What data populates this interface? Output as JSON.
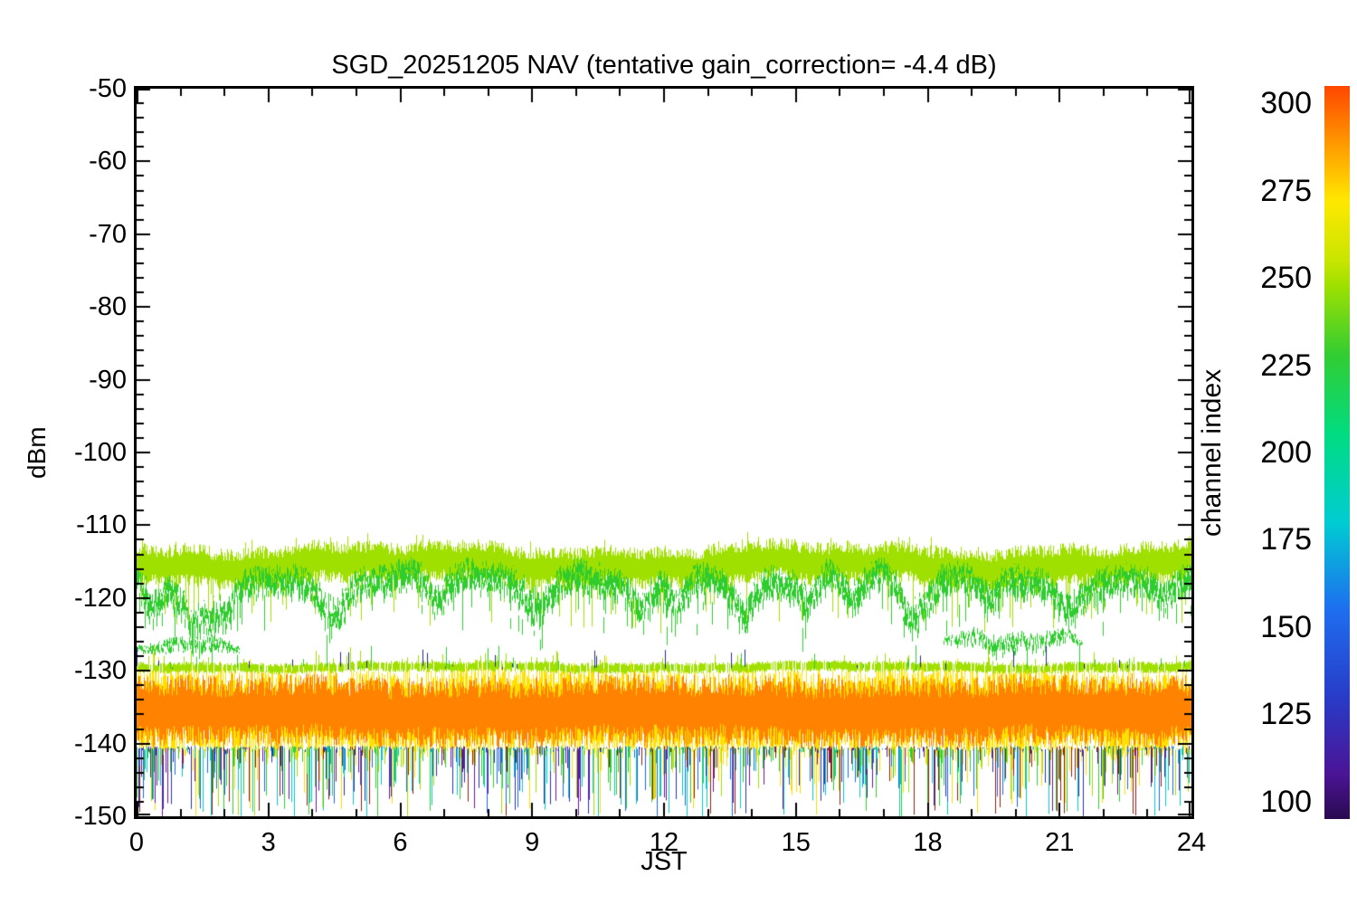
{
  "chart_data": {
    "type": "line",
    "title": "SGD_20251205 NAV (tentative gain_correction= -4.4 dB)",
    "xlabel": "JST",
    "ylabel": "dBm",
    "xlim": [
      0,
      24
    ],
    "ylim": [
      -150,
      -50
    ],
    "xticks": [
      0,
      3,
      6,
      9,
      12,
      15,
      18,
      21,
      24
    ],
    "x_minor_step": 1,
    "yticks": [
      -150,
      -140,
      -130,
      -120,
      -110,
      -100,
      -90,
      -80,
      -70,
      -60,
      -50
    ],
    "y_minor_step": 2,
    "grid": false,
    "background": "#ffffff",
    "axis_color": "#000000",
    "colorbar": {
      "label": "channel index",
      "range": [
        95,
        305
      ],
      "ticks": [
        100,
        125,
        150,
        175,
        200,
        225,
        250,
        275,
        300
      ],
      "stops": [
        [
          305,
          "#ff4600"
        ],
        [
          295,
          "#ff7800"
        ],
        [
          283,
          "#ffb400"
        ],
        [
          272,
          "#ffe800"
        ],
        [
          255,
          "#c8e600"
        ],
        [
          248,
          "#a0e000"
        ],
        [
          228,
          "#32cd32"
        ],
        [
          205,
          "#00dc82"
        ],
        [
          180,
          "#00ccd2"
        ],
        [
          155,
          "#1e6ef0"
        ],
        [
          130,
          "#283cc8"
        ],
        [
          108,
          "#4b1496"
        ],
        [
          95,
          "#2a0a50"
        ]
      ]
    },
    "series": [
      {
        "name": "upper band channels ~250",
        "channel": 250,
        "kind": "band",
        "color": "#a0e000",
        "center": -115.4,
        "amp": 3.0,
        "jitter": 1.0,
        "spikes_down": {
          "p": 0.12,
          "max": 6.5
        },
        "spikes_up": {
          "p": 0.05,
          "max": 1.5
        }
      },
      {
        "name": "upper band channels ~225",
        "channel": 225,
        "kind": "band",
        "color": "#2ecc2e",
        "center": -117.8,
        "amp": 2.8,
        "jitter": 1.3,
        "strands": 3,
        "spikes_down": {
          "p": 0.1,
          "max": 6
        },
        "dips": [
          {
            "x": 0.35,
            "w": 0.2,
            "d": 5
          },
          {
            "x": 1.3,
            "w": 0.35,
            "d": 7
          },
          {
            "x": 2.0,
            "w": 0.25,
            "d": 5
          },
          {
            "x": 4.5,
            "w": 0.25,
            "d": 5.5
          },
          {
            "x": 6.8,
            "w": 0.2,
            "d": 4
          },
          {
            "x": 9.1,
            "w": 0.3,
            "d": 7
          },
          {
            "x": 11.5,
            "w": 0.2,
            "d": 4.5
          },
          {
            "x": 12.3,
            "w": 0.15,
            "d": 3.5
          },
          {
            "x": 13.8,
            "w": 0.22,
            "d": 5
          },
          {
            "x": 15.3,
            "w": 0.18,
            "d": 3.5
          },
          {
            "x": 16.3,
            "w": 0.22,
            "d": 4.5
          },
          {
            "x": 17.7,
            "w": 0.3,
            "d": 7
          },
          {
            "x": 19.4,
            "w": 0.2,
            "d": 4
          },
          {
            "x": 21.2,
            "w": 0.25,
            "d": 4.5
          },
          {
            "x": 23.4,
            "w": 0.2,
            "d": 3.5
          }
        ]
      },
      {
        "name": "low cluster a channels ~225",
        "channel": 225,
        "kind": "cluster",
        "color": "#2ecc2e",
        "x0": 0.0,
        "x1": 2.35,
        "center": -126.8,
        "amp": 1.5,
        "jitter": 0.5,
        "density": 0.85,
        "strands": 2
      },
      {
        "name": "low cluster b channels ~225",
        "channel": 225,
        "kind": "cluster",
        "color": "#2ecc2e",
        "x0": 18.35,
        "x1": 21.5,
        "center": -126.2,
        "amp": 1.9,
        "jitter": 0.9,
        "density": 0.9,
        "strands": 2
      },
      {
        "name": "lower band channels ~270",
        "channel": 270,
        "kind": "band",
        "color": "#ffe000",
        "center": -135.6,
        "amp": 6.2,
        "jitter": 0.6,
        "spikes_up": {
          "p": 0.15,
          "max": 1.6
        },
        "spikes_down": {
          "p": 0.2,
          "max": 1.6
        }
      },
      {
        "name": "lower band channels ~300",
        "channel": 300,
        "kind": "band",
        "color": "#ff8200",
        "center": -135.6,
        "amp": 4.9,
        "jitter": 0.5,
        "spikes_up": {
          "p": 0.1,
          "max": 1.0
        },
        "spikes_down": {
          "p": 0.1,
          "max": 1.0
        }
      },
      {
        "name": "noise floor dropouts channels 100-250",
        "kind": "spikes",
        "color_palette": [
          "#2ecc2e",
          "#2ecc2e",
          "#00c8c8",
          "#00c8c8",
          "#a0e000",
          "#1e64f0",
          "#2830b4",
          "#6a14a0",
          "#8c1e14",
          "#ffd800"
        ],
        "base": -140.6,
        "extreme": -150.4,
        "density": 0.6,
        "pow": 2.0
      },
      {
        "name": "band edge channels ~250",
        "channel": 250,
        "kind": "band",
        "color": "#a0e000",
        "center": -129.5,
        "amp": 0.8,
        "jitter": 0.3,
        "density": 0.85,
        "spikes_up": {
          "p": 0.05,
          "max": 1.2
        }
      },
      {
        "name": "edge spikes",
        "kind": "spikes",
        "color_palette": [
          "#2ecc2e",
          "#202890",
          "#a0e000"
        ],
        "base": -129.6,
        "extreme": -126.4,
        "density": 0.06,
        "pow": 1.4
      }
    ]
  }
}
